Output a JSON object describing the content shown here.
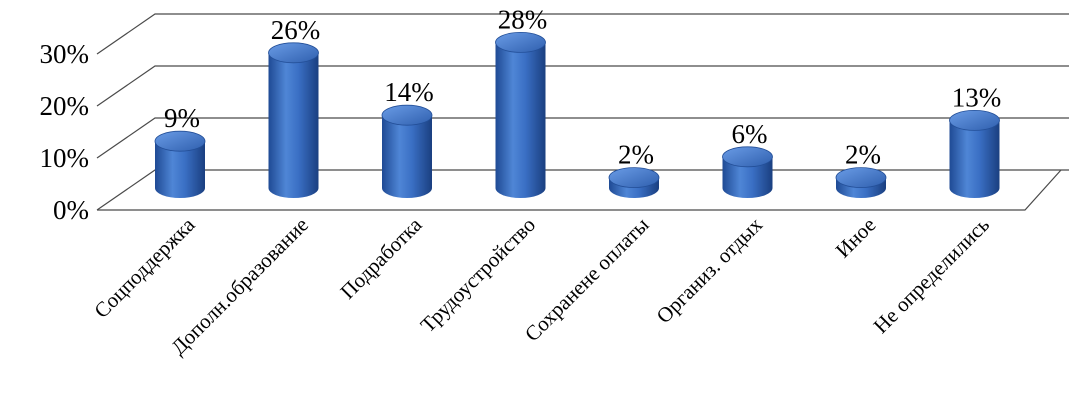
{
  "chart_data": {
    "type": "bar",
    "style": "3d-cylinder",
    "categories": [
      "Соцподдержка",
      "Дополн.образование",
      "Подработка",
      "Трудоустройство",
      "Сохранене оплаты",
      "Организ. отдых",
      "Иное",
      "Не определились"
    ],
    "values": [
      9,
      26,
      14,
      28,
      2,
      6,
      2,
      13
    ],
    "data_labels": [
      "9%",
      "26%",
      "14%",
      "28%",
      "2%",
      "6%",
      "2%",
      "13%"
    ],
    "y_ticks": [
      "0%",
      "10%",
      "20%",
      "30%"
    ],
    "ylim": [
      0,
      30
    ],
    "grid": true,
    "legend": "none",
    "colors": {
      "bar": "#3a6fc4",
      "bar_dark": "#1f4a94",
      "bar_top": "#5a8fe0",
      "grid": "#4a4a4a"
    }
  }
}
